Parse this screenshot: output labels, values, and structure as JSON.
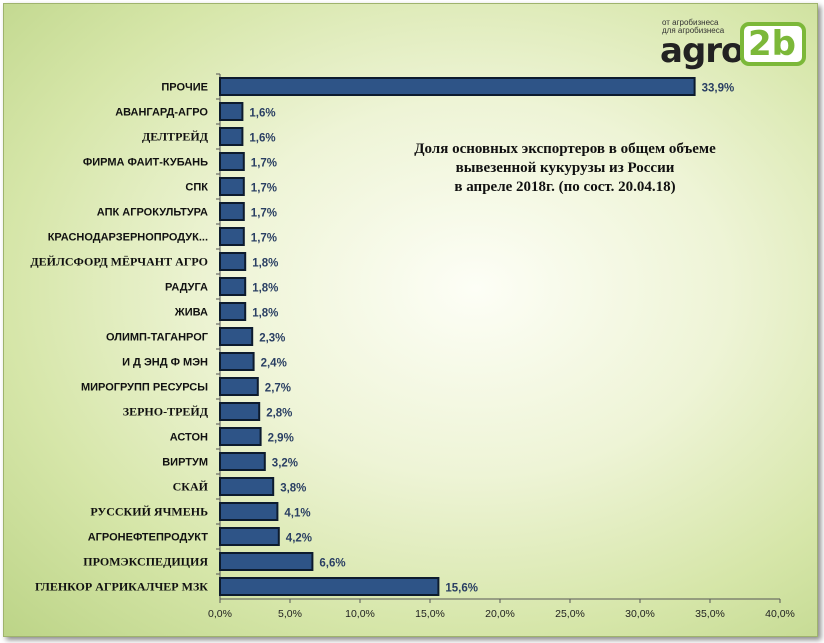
{
  "logo": {
    "tagline_1": "от агробизнеса",
    "tagline_2": "для агробизнеса",
    "wordmark": "agro",
    "badge": "2b",
    "accent_color": "#7cb839"
  },
  "chart_data": {
    "type": "bar",
    "orientation": "horizontal",
    "title_lines": [
      "Доля основных экспортеров в общем объеме",
      "вывезенной кукурузы из России",
      "в апреле 2018г. (по сост.  20.04.18)"
    ],
    "categories": [
      "ПРОЧИЕ",
      "АВАНГАРД-АГРО",
      "ДЕЛТРЕЙД",
      "ФИРМА ФАИТ-КУБАНЬ",
      "СПК",
      "АПК АГРОКУЛЬТУРА",
      "КРАСНОДАРЗЕРНОПРОДУК...",
      "ДЕЙЛСФОРД МЁРЧАНТ АГРО",
      "РАДУГА",
      "ЖИВА",
      "ОЛИМП-ТАГАНРОГ",
      "И Д ЭНД Ф МЭН",
      "МИРОГРУПП РЕСУРСЫ",
      "ЗЕРНО-ТРЕЙД",
      "АСТОН",
      "ВИРТУМ",
      "СКАЙ",
      "РУССКИЙ ЯЧМЕНЬ",
      "АГРОНЕФТЕПРОДУКТ",
      "ПРОМЭКСПЕДИЦИЯ",
      "ГЛЕНКОР АГРИКАЛЧЕР МЗК"
    ],
    "values": [
      33.9,
      1.6,
      1.6,
      1.7,
      1.7,
      1.7,
      1.7,
      1.8,
      1.8,
      1.8,
      2.3,
      2.4,
      2.7,
      2.8,
      2.9,
      3.2,
      3.8,
      4.1,
      4.2,
      6.6,
      15.6
    ],
    "value_labels": [
      "33,9%",
      "1,6%",
      "1,6%",
      "1,7%",
      "1,7%",
      "1,7%",
      "1,7%",
      "1,8%",
      "1,8%",
      "1,8%",
      "2,3%",
      "2,4%",
      "2,7%",
      "2,8%",
      "2,9%",
      "3,2%",
      "3,8%",
      "4,1%",
      "4,2%",
      "6,6%",
      "15,6%"
    ],
    "xlim": [
      0,
      40
    ],
    "xticks": [
      0,
      5,
      10,
      15,
      20,
      25,
      30,
      35,
      40
    ],
    "xtick_labels": [
      "0,0%",
      "5,0%",
      "10,0%",
      "15,0%",
      "20,0%",
      "25,0%",
      "30,0%",
      "35,0%",
      "40,0%"
    ],
    "grid": false,
    "legend": "none",
    "bar_color": "#2e5487",
    "bar_edge_color": "#0d1b2e",
    "label_color": "#2a3f63"
  }
}
